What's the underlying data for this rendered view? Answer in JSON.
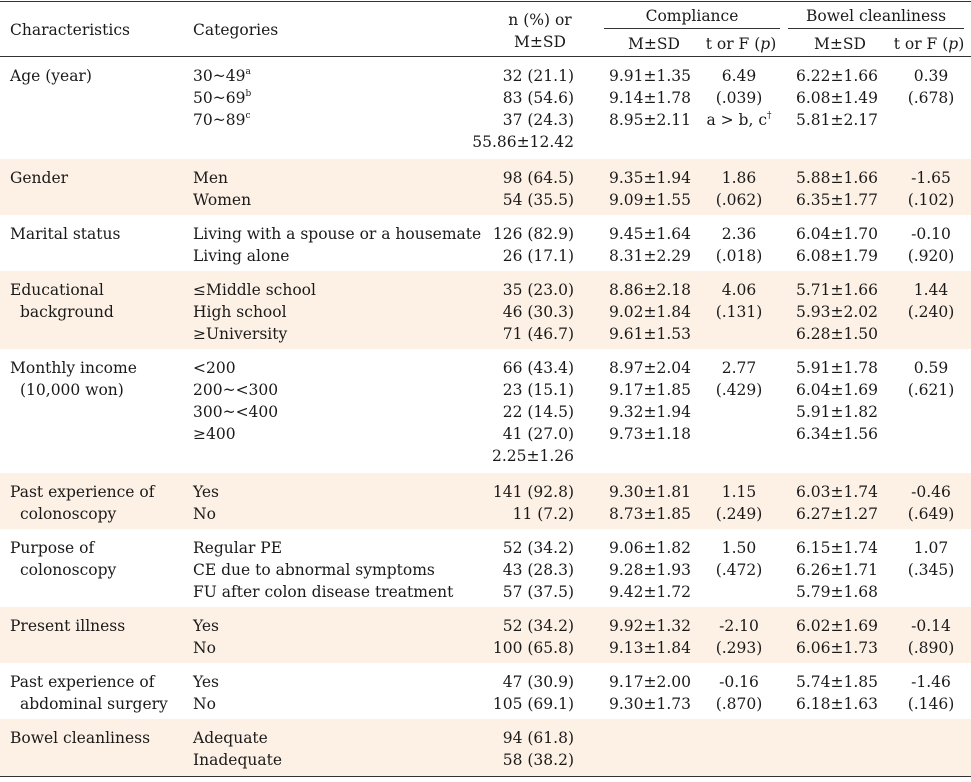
{
  "header": {
    "characteristics": "Characteristics",
    "categories": "Categories",
    "n_line1": "n (%) or",
    "n_line2": "M±SD",
    "compliance": "Compliance",
    "bowel": "Bowel cleanliness",
    "msd": "M±SD",
    "tf_prefix": "t or F (",
    "tf_p": "p",
    "tf_suffix": ")"
  },
  "rows": [
    {
      "label": [
        "Age (year)"
      ],
      "shade": false,
      "cats": [
        {
          "text": "30~49",
          "sup": "a"
        },
        {
          "text": "50~69",
          "sup": "b"
        },
        {
          "text": "70~89",
          "sup": "c"
        },
        {
          "text": ""
        }
      ],
      "n": [
        "32 (21.1)",
        "83 (54.6)",
        "37 (24.3)",
        "55.86±12.42"
      ],
      "comp_msd": [
        "9.91±1.35",
        "9.14±1.78",
        "8.95±2.11"
      ],
      "comp_tf": [
        "6.49",
        "(.039)",
        "a > b, c"
      ],
      "comp_tf_sup": "†",
      "bowel_msd": [
        "6.22±1.66",
        "6.08±1.49",
        "5.81±2.17"
      ],
      "bowel_tf": [
        "0.39",
        "(.678)"
      ]
    },
    {
      "label": [
        "Gender"
      ],
      "shade": true,
      "cats": [
        {
          "text": "Men"
        },
        {
          "text": "Women"
        }
      ],
      "n": [
        "98 (64.5)",
        "54 (35.5)"
      ],
      "comp_msd": [
        "9.35±1.94",
        "9.09±1.55"
      ],
      "comp_tf": [
        "1.86",
        "(.062)"
      ],
      "bowel_msd": [
        "5.88±1.66",
        "6.35±1.77"
      ],
      "bowel_tf": [
        "-1.65",
        "(.102)"
      ]
    },
    {
      "label": [
        "Marital status"
      ],
      "shade": false,
      "cats": [
        {
          "text": "Living with a spouse or a housemate"
        },
        {
          "text": "Living alone"
        }
      ],
      "n": [
        "126 (82.9)",
        "26 (17.1)"
      ],
      "comp_msd": [
        "9.45±1.64",
        "8.31±2.29"
      ],
      "comp_tf": [
        "2.36",
        "(.018)"
      ],
      "bowel_msd": [
        "6.04±1.70",
        "6.08±1.79"
      ],
      "bowel_tf": [
        "-0.10",
        "(.920)"
      ]
    },
    {
      "label": [
        "Educational",
        "background"
      ],
      "shade": true,
      "cats": [
        {
          "text": "≤Middle school"
        },
        {
          "text": "High school"
        },
        {
          "text": "≥University"
        }
      ],
      "n": [
        "35 (23.0)",
        "46 (30.3)",
        "71 (46.7)"
      ],
      "comp_msd": [
        "8.86±2.18",
        "9.02±1.84",
        "9.61±1.53"
      ],
      "comp_tf": [
        "4.06",
        "(.131)"
      ],
      "bowel_msd": [
        "5.71±1.66",
        "5.93±2.02",
        "6.28±1.50"
      ],
      "bowel_tf": [
        "1.44",
        "(.240)"
      ]
    },
    {
      "label": [
        "Monthly income",
        "(10,000 won)"
      ],
      "shade": false,
      "cats": [
        {
          "text": "<200"
        },
        {
          "text": "200~<300"
        },
        {
          "text": "300~<400"
        },
        {
          "text": "≥400"
        },
        {
          "text": ""
        }
      ],
      "n": [
        "66 (43.4)",
        "23 (15.1)",
        "22 (14.5)",
        "41 (27.0)",
        "2.25±1.26"
      ],
      "comp_msd": [
        "8.97±2.04",
        "9.17±1.85",
        "9.32±1.94",
        "9.73±1.18"
      ],
      "comp_tf": [
        "2.77",
        "(.429)"
      ],
      "bowel_msd": [
        "5.91±1.78",
        "6.04±1.69",
        "5.91±1.82",
        "6.34±1.56"
      ],
      "bowel_tf": [
        "0.59",
        "(.621)"
      ]
    },
    {
      "label": [
        "Past experience of",
        "colonoscopy"
      ],
      "shade": true,
      "cats": [
        {
          "text": "Yes"
        },
        {
          "text": "No"
        }
      ],
      "n": [
        "141 (92.8)",
        "11 (7.2)"
      ],
      "comp_msd": [
        "9.30±1.81",
        "8.73±1.85"
      ],
      "comp_tf": [
        "1.15",
        "(.249)"
      ],
      "bowel_msd": [
        "6.03±1.74",
        "6.27±1.27"
      ],
      "bowel_tf": [
        "-0.46",
        "(.649)"
      ]
    },
    {
      "label": [
        "Purpose of",
        "colonoscopy"
      ],
      "shade": false,
      "cats": [
        {
          "text": "Regular PE"
        },
        {
          "text": "CE due to abnormal symptoms"
        },
        {
          "text": "FU after colon disease treatment"
        }
      ],
      "n": [
        "52 (34.2)",
        "43 (28.3)",
        "57 (37.5)"
      ],
      "comp_msd": [
        "9.06±1.82",
        "9.28±1.93",
        "9.42±1.72"
      ],
      "comp_tf": [
        "1.50",
        "(.472)"
      ],
      "bowel_msd": [
        "6.15±1.74",
        "6.26±1.71",
        "5.79±1.68"
      ],
      "bowel_tf": [
        "1.07",
        "(.345)"
      ]
    },
    {
      "label": [
        "Present illness"
      ],
      "shade": true,
      "cats": [
        {
          "text": "Yes"
        },
        {
          "text": "No"
        }
      ],
      "n": [
        "52 (34.2)",
        "100 (65.8)"
      ],
      "comp_msd": [
        "9.92±1.32",
        "9.13±1.84"
      ],
      "comp_tf": [
        "-2.10",
        "(.293)"
      ],
      "bowel_msd": [
        "6.02±1.69",
        "6.06±1.73"
      ],
      "bowel_tf": [
        "-0.14",
        "(.890)"
      ]
    },
    {
      "label": [
        "Past experience of",
        "abdominal surgery"
      ],
      "shade": false,
      "cats": [
        {
          "text": "Yes"
        },
        {
          "text": "No"
        }
      ],
      "n": [
        "47 (30.9)",
        "105 (69.1)"
      ],
      "comp_msd": [
        "9.17±2.00",
        "9.30±1.73"
      ],
      "comp_tf": [
        "-0.16",
        "(.870)"
      ],
      "bowel_msd": [
        "5.74±1.85",
        "6.18±1.63"
      ],
      "bowel_tf": [
        "-1.46",
        "(.146)"
      ]
    },
    {
      "label": [
        "Bowel cleanliness"
      ],
      "shade": true,
      "cats": [
        {
          "text": "Adequate"
        },
        {
          "text": "Inadequate"
        }
      ],
      "n": [
        "94 (61.8)",
        "58 (38.2)"
      ],
      "comp_msd": [],
      "comp_tf": [],
      "bowel_msd": [],
      "bowel_tf": []
    }
  ]
}
